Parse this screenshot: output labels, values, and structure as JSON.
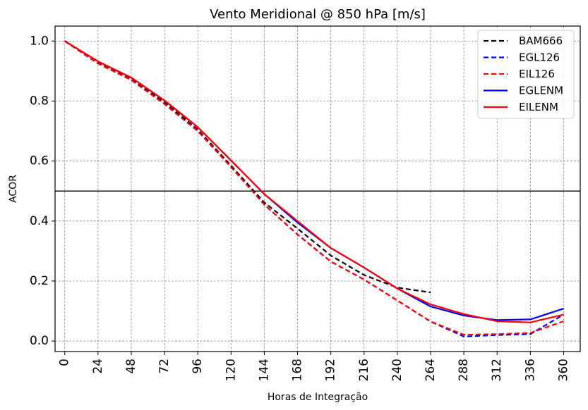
{
  "chart_data": {
    "type": "line",
    "title": "Vento Meridional @ 850 hPa [m/s]",
    "xlabel": "Horas de Integração",
    "ylabel": "ACOR",
    "xlim": [
      -7,
      372
    ],
    "ylim": [
      -0.035,
      1.05
    ],
    "x_ticks": [
      "0",
      "24",
      "48",
      "72",
      "96",
      "120",
      "144",
      "168",
      "192",
      "216",
      "240",
      "264",
      "288",
      "312",
      "336",
      "360"
    ],
    "y_ticks": [
      "0.0",
      "0.2",
      "0.4",
      "0.6",
      "0.8",
      "1.0"
    ],
    "grid": true,
    "reference_line": 0.5,
    "legend_position": "top-right",
    "series": [
      {
        "name": "BAM666",
        "color": "#000000",
        "dashed": true,
        "x": [
          0,
          24,
          48,
          72,
          96,
          120,
          144,
          168,
          192,
          216,
          240,
          264
        ],
        "values": [
          1.0,
          0.928,
          0.872,
          0.796,
          0.705,
          0.585,
          0.462,
          0.375,
          0.285,
          0.22,
          0.178,
          0.162
        ]
      },
      {
        "name": "EGL126",
        "color": "#0000ff",
        "dashed": true,
        "x": [
          0,
          24,
          48,
          72,
          96,
          120,
          144,
          168,
          192,
          216,
          240,
          264,
          288,
          312,
          336,
          360
        ],
        "values": [
          1.0,
          0.925,
          0.87,
          0.79,
          0.7,
          0.58,
          0.455,
          0.355,
          0.265,
          0.205,
          0.135,
          0.065,
          0.015,
          0.02,
          0.023,
          0.088
        ]
      },
      {
        "name": "EIL126",
        "color": "#ff0000",
        "dashed": true,
        "x": [
          0,
          24,
          48,
          72,
          96,
          120,
          144,
          168,
          192,
          216,
          240,
          264,
          288,
          312,
          336,
          360
        ],
        "values": [
          1.0,
          0.925,
          0.87,
          0.79,
          0.7,
          0.58,
          0.455,
          0.355,
          0.265,
          0.205,
          0.135,
          0.065,
          0.021,
          0.023,
          0.027,
          0.066
        ]
      },
      {
        "name": "EGLENM",
        "color": "#0000ff",
        "dashed": false,
        "x": [
          0,
          24,
          48,
          72,
          96,
          120,
          144,
          168,
          192,
          216,
          240,
          264,
          288,
          312,
          336,
          360
        ],
        "values": [
          1.0,
          0.932,
          0.878,
          0.802,
          0.713,
          0.602,
          0.49,
          0.395,
          0.31,
          0.245,
          0.175,
          0.115,
          0.085,
          0.07,
          0.072,
          0.108
        ]
      },
      {
        "name": "EILENM",
        "color": "#ff0000",
        "dashed": false,
        "x": [
          0,
          24,
          48,
          72,
          96,
          120,
          144,
          168,
          192,
          216,
          240,
          264,
          288,
          312,
          336,
          360
        ],
        "values": [
          1.0,
          0.932,
          0.878,
          0.802,
          0.713,
          0.602,
          0.49,
          0.4,
          0.31,
          0.245,
          0.175,
          0.122,
          0.09,
          0.066,
          0.062,
          0.088
        ]
      }
    ]
  }
}
